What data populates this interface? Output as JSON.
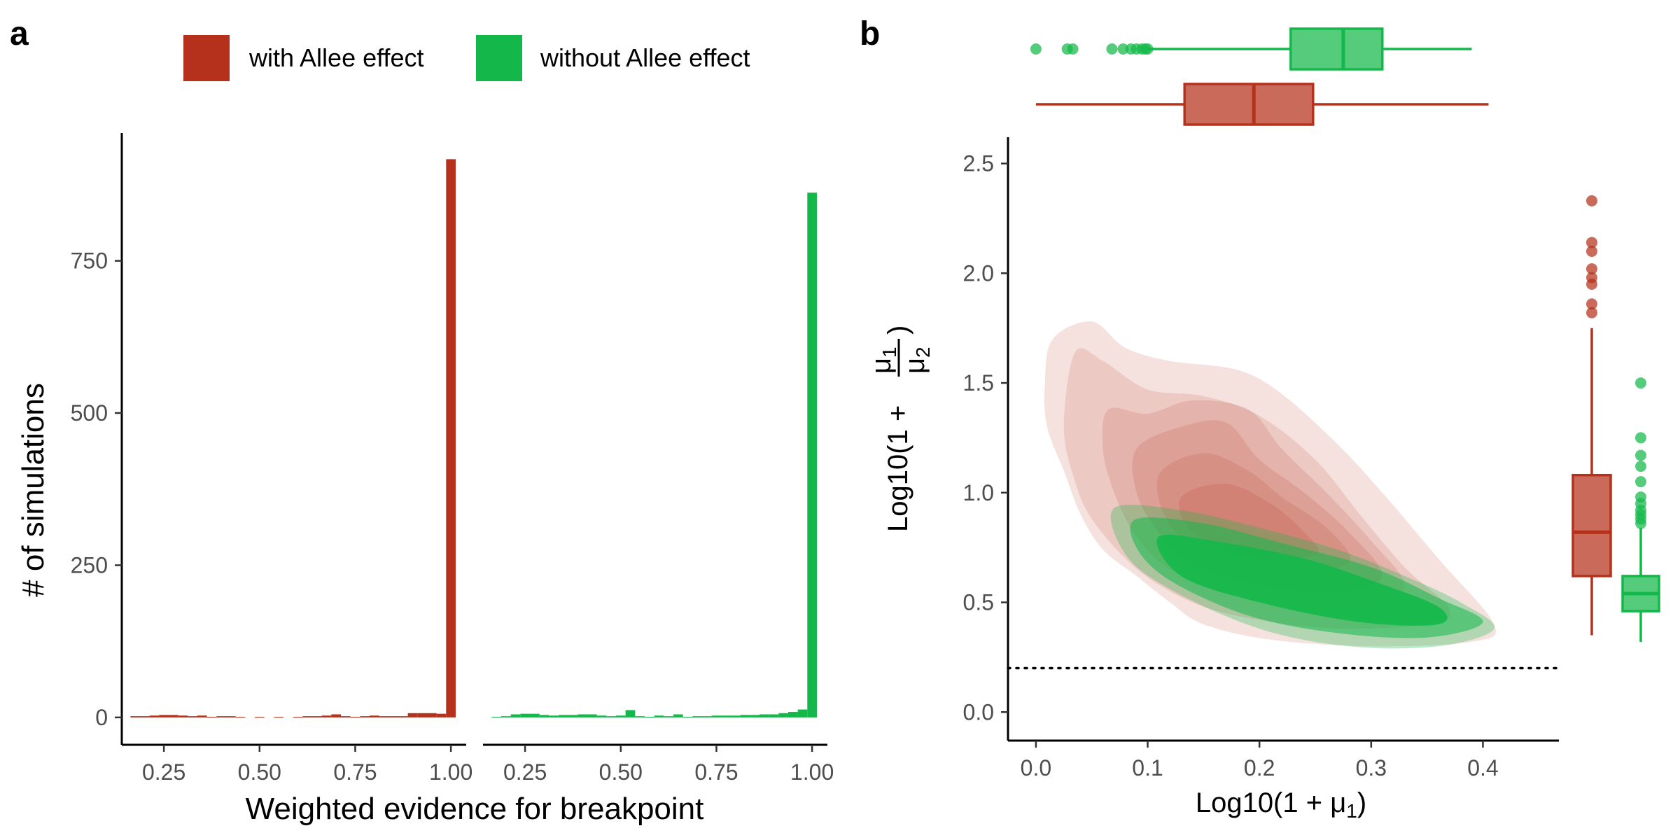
{
  "colors": {
    "allee": "#b5311b",
    "no_allee": "#14b84a",
    "axis": "#000000",
    "tick_text": "#4d4d4d"
  },
  "panel_a": {
    "letter": "a",
    "legend": [
      "with Allee effect",
      "without Allee effect"
    ],
    "xlabel": "Weighted evidence for breakpoint",
    "ylabel": "# of simulations"
  },
  "panel_b": {
    "letter": "b",
    "xlabel_main": "Log10(1 + μ",
    "xlabel_sub": "1",
    "xlabel_close": ")",
    "ylabel_prefix": "Log10(1 +",
    "ylabel_close": ")",
    "ylabel_num": "μ",
    "ylabel_num_sub": "1",
    "ylabel_den": "μ",
    "ylabel_den_sub": "2"
  },
  "chart_data": [
    {
      "type": "bar",
      "panel": "a",
      "xlabel": "Weighted evidence for breakpoint",
      "ylabel": "# of simulations",
      "xlim": [
        0.14,
        1.04
      ],
      "ylim": [
        -45,
        960
      ],
      "xticks": [
        "0.25",
        "0.50",
        "0.75",
        "1.00"
      ],
      "yticks": [
        "0",
        "250",
        "500",
        "750"
      ],
      "legend_position": "top",
      "facets": [
        {
          "name": "with Allee effect",
          "bin_width": 0.025,
          "x": [
            0.175,
            0.2,
            0.225,
            0.25,
            0.275,
            0.3,
            0.325,
            0.35,
            0.375,
            0.4,
            0.425,
            0.45,
            0.475,
            0.5,
            0.525,
            0.55,
            0.575,
            0.6,
            0.625,
            0.65,
            0.675,
            0.7,
            0.725,
            0.75,
            0.775,
            0.8,
            0.825,
            0.85,
            0.875,
            0.9,
            0.925,
            0.95,
            0.975,
            1.0
          ],
          "values": [
            2,
            2,
            3,
            4,
            4,
            3,
            2,
            3,
            1,
            2,
            2,
            1,
            0,
            1,
            0,
            1,
            0,
            1,
            2,
            2,
            3,
            5,
            2,
            1,
            2,
            3,
            2,
            2,
            2,
            7,
            7,
            7,
            6,
            917
          ]
        },
        {
          "name": "without Allee effect",
          "bin_width": 0.025,
          "x": [
            0.175,
            0.2,
            0.225,
            0.25,
            0.275,
            0.3,
            0.325,
            0.35,
            0.375,
            0.4,
            0.425,
            0.45,
            0.475,
            0.5,
            0.525,
            0.55,
            0.575,
            0.6,
            0.625,
            0.65,
            0.675,
            0.7,
            0.725,
            0.75,
            0.775,
            0.8,
            0.825,
            0.85,
            0.875,
            0.9,
            0.925,
            0.95,
            0.975,
            1.0
          ],
          "values": [
            1,
            2,
            5,
            6,
            6,
            4,
            3,
            4,
            4,
            5,
            5,
            3,
            2,
            3,
            12,
            2,
            1,
            3,
            2,
            5,
            1,
            2,
            2,
            3,
            3,
            3,
            4,
            4,
            5,
            5,
            7,
            9,
            13,
            862
          ]
        }
      ]
    },
    {
      "type": "contour",
      "panel": "b",
      "xlabel": "Log10(1 + μ1)",
      "ylabel": "Log10(1 + μ1/μ2)",
      "xlim": [
        -0.025,
        0.468
      ],
      "ylim": [
        -0.13,
        2.62
      ],
      "xticks": [
        "0.0",
        "0.1",
        "0.2",
        "0.3",
        "0.4"
      ],
      "yticks": [
        "0.0",
        "0.5",
        "1.0",
        "1.5",
        "2.0",
        "2.5"
      ],
      "reference_line": {
        "y": 0.2,
        "style": "dotted"
      },
      "series": [
        {
          "name": "with Allee effect",
          "density_contours": [
            [
              [
                0.015,
                1.7
              ],
              [
                0.05,
                1.78
              ],
              [
                0.08,
                1.66
              ],
              [
                0.12,
                1.6
              ],
              [
                0.18,
                1.56
              ],
              [
                0.22,
                1.45
              ],
              [
                0.27,
                1.22
              ],
              [
                0.31,
                1.0
              ],
              [
                0.36,
                0.7
              ],
              [
                0.41,
                0.4
              ],
              [
                0.39,
                0.32
              ],
              [
                0.3,
                0.3
              ],
              [
                0.21,
                0.33
              ],
              [
                0.15,
                0.4
              ],
              [
                0.12,
                0.5
              ],
              [
                0.09,
                0.62
              ],
              [
                0.06,
                0.74
              ],
              [
                0.04,
                0.9
              ],
              [
                0.025,
                1.1
              ],
              [
                0.01,
                1.3
              ],
              [
                0.008,
                1.5
              ]
            ],
            [
              [
                0.035,
                1.64
              ],
              [
                0.06,
                1.6
              ],
              [
                0.1,
                1.47
              ],
              [
                0.15,
                1.44
              ],
              [
                0.2,
                1.35
              ],
              [
                0.25,
                1.15
              ],
              [
                0.29,
                0.9
              ],
              [
                0.33,
                0.66
              ],
              [
                0.37,
                0.47
              ],
              [
                0.35,
                0.4
              ],
              [
                0.27,
                0.38
              ],
              [
                0.2,
                0.42
              ],
              [
                0.15,
                0.48
              ],
              [
                0.11,
                0.58
              ],
              [
                0.08,
                0.7
              ],
              [
                0.05,
                0.88
              ],
              [
                0.035,
                1.05
              ],
              [
                0.025,
                1.3
              ]
            ],
            [
              [
                0.065,
                1.38
              ],
              [
                0.1,
                1.36
              ],
              [
                0.14,
                1.42
              ],
              [
                0.19,
                1.38
              ],
              [
                0.22,
                1.2
              ],
              [
                0.26,
                1.0
              ],
              [
                0.3,
                0.78
              ],
              [
                0.33,
                0.58
              ],
              [
                0.3,
                0.5
              ],
              [
                0.23,
                0.5
              ],
              [
                0.17,
                0.55
              ],
              [
                0.12,
                0.65
              ],
              [
                0.09,
                0.8
              ],
              [
                0.07,
                1.0
              ],
              [
                0.06,
                1.2
              ]
            ],
            [
              [
                0.09,
                1.2
              ],
              [
                0.13,
                1.3
              ],
              [
                0.17,
                1.32
              ],
              [
                0.2,
                1.15
              ],
              [
                0.24,
                1.0
              ],
              [
                0.28,
                0.82
              ],
              [
                0.31,
                0.62
              ],
              [
                0.27,
                0.55
              ],
              [
                0.2,
                0.58
              ],
              [
                0.14,
                0.68
              ],
              [
                0.11,
                0.82
              ],
              [
                0.09,
                1.0
              ]
            ],
            [
              [
                0.11,
                1.08
              ],
              [
                0.15,
                1.18
              ],
              [
                0.19,
                1.1
              ],
              [
                0.22,
                0.98
              ],
              [
                0.26,
                0.84
              ],
              [
                0.28,
                0.68
              ],
              [
                0.22,
                0.63
              ],
              [
                0.16,
                0.7
              ],
              [
                0.12,
                0.85
              ]
            ],
            [
              [
                0.13,
                0.98
              ],
              [
                0.17,
                1.04
              ],
              [
                0.21,
                0.95
              ],
              [
                0.24,
                0.82
              ],
              [
                0.25,
                0.72
              ],
              [
                0.19,
                0.7
              ],
              [
                0.14,
                0.82
              ]
            ]
          ]
        },
        {
          "name": "without Allee effect",
          "density_contours": [
            [
              [
                0.07,
                0.93
              ],
              [
                0.13,
                0.92
              ],
              [
                0.2,
                0.84
              ],
              [
                0.27,
                0.74
              ],
              [
                0.33,
                0.62
              ],
              [
                0.38,
                0.5
              ],
              [
                0.41,
                0.38
              ],
              [
                0.36,
                0.3
              ],
              [
                0.28,
                0.3
              ],
              [
                0.2,
                0.38
              ],
              [
                0.12,
                0.56
              ],
              [
                0.08,
                0.72
              ]
            ],
            [
              [
                0.09,
                0.88
              ],
              [
                0.15,
                0.86
              ],
              [
                0.22,
                0.77
              ],
              [
                0.3,
                0.66
              ],
              [
                0.36,
                0.52
              ],
              [
                0.4,
                0.41
              ],
              [
                0.35,
                0.34
              ],
              [
                0.27,
                0.36
              ],
              [
                0.19,
                0.44
              ],
              [
                0.12,
                0.6
              ],
              [
                0.09,
                0.75
              ]
            ],
            [
              [
                0.11,
                0.8
              ],
              [
                0.17,
                0.77
              ],
              [
                0.24,
                0.7
              ],
              [
                0.3,
                0.6
              ],
              [
                0.36,
                0.48
              ],
              [
                0.36,
                0.4
              ],
              [
                0.29,
                0.41
              ],
              [
                0.2,
                0.5
              ],
              [
                0.13,
                0.62
              ]
            ]
          ]
        }
      ]
    },
    {
      "type": "box",
      "panel": "b",
      "orientation": "horizontal",
      "variable": "Log10(1 + μ1)",
      "series": [
        {
          "name": "without Allee effect",
          "whisker_low": 0.1,
          "q1": 0.228,
          "median": 0.275,
          "q3": 0.31,
          "whisker_high": 0.39,
          "outliers": [
            0.0,
            0.028,
            0.033,
            0.068,
            0.078,
            0.085,
            0.09,
            0.095,
            0.098,
            0.1
          ]
        },
        {
          "name": "with Allee effect",
          "whisker_low": 0.0,
          "q1": 0.133,
          "median": 0.195,
          "q3": 0.248,
          "whisker_high": 0.405,
          "outliers": []
        }
      ]
    },
    {
      "type": "box",
      "panel": "b",
      "orientation": "vertical",
      "variable": "Log10(1 + μ1/μ2)",
      "series": [
        {
          "name": "with Allee effect",
          "whisker_low": 0.35,
          "q1": 0.62,
          "median": 0.82,
          "q3": 1.08,
          "whisker_high": 1.75,
          "outliers": [
            1.82,
            1.86,
            1.95,
            1.98,
            2.02,
            2.1,
            2.14,
            2.33
          ]
        },
        {
          "name": "without Allee effect",
          "whisker_low": 0.32,
          "q1": 0.46,
          "median": 0.54,
          "q3": 0.62,
          "whisker_high": 0.84,
          "outliers": [
            0.86,
            0.88,
            0.9,
            0.92,
            0.95,
            0.98,
            1.05,
            1.12,
            1.17,
            1.25,
            1.5
          ]
        }
      ]
    }
  ]
}
